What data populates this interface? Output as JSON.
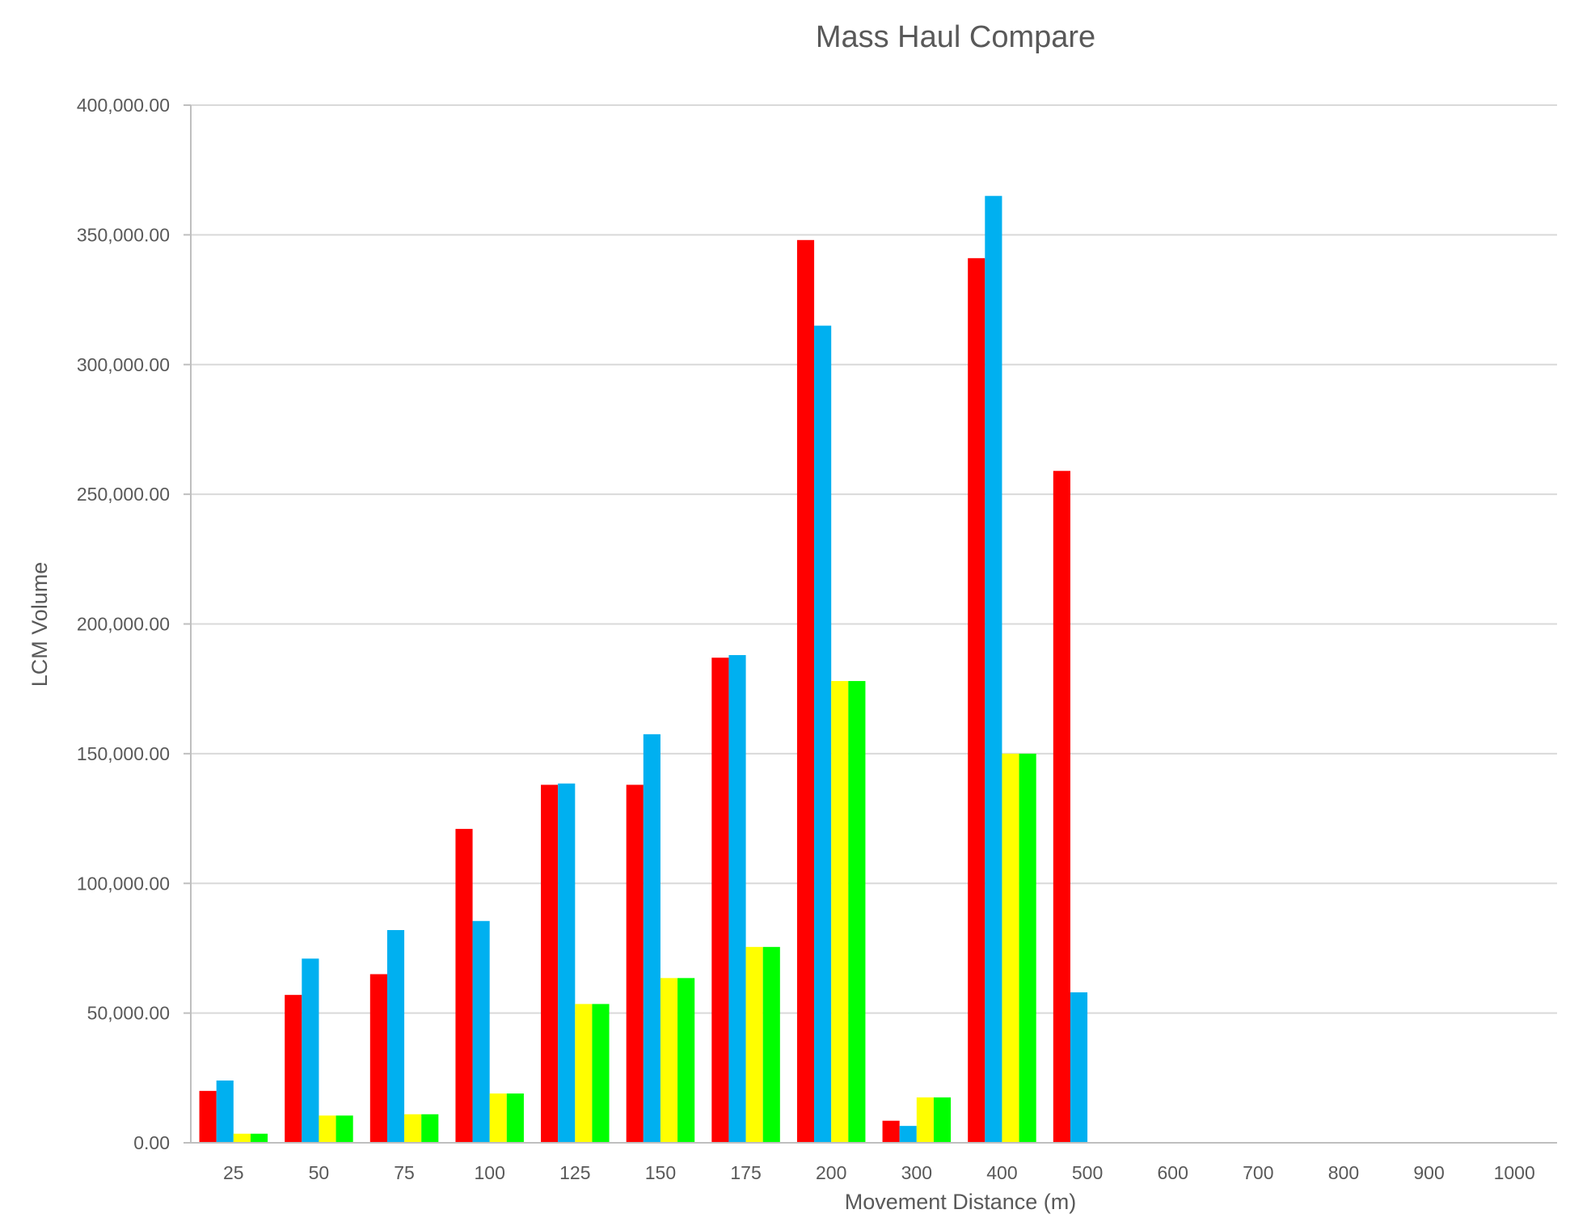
{
  "chart_data": {
    "type": "bar",
    "title": "Mass Haul Compare",
    "xlabel": "Movement Distance (m)",
    "ylabel": "LCM Volume",
    "ylim": [
      0,
      400000
    ],
    "yticks": [
      "0.00",
      "50,000.00",
      "100,000.00",
      "150,000.00",
      "200,000.00",
      "250,000.00",
      "300,000.00",
      "350,000.00",
      "400,000.00"
    ],
    "grid": true,
    "legend": "none",
    "categories": [
      "25",
      "50",
      "75",
      "100",
      "125",
      "150",
      "175",
      "200",
      "300",
      "400",
      "500",
      "600",
      "700",
      "800",
      "900",
      "1000"
    ],
    "series": [
      {
        "color": "#ff0000",
        "values": [
          20000,
          57000,
          65000,
          121000,
          138000,
          138000,
          187000,
          348000,
          8500,
          341000,
          259000,
          0,
          0,
          0,
          0,
          0
        ]
      },
      {
        "color": "#00b0f0",
        "values": [
          24000,
          71000,
          82000,
          85500,
          138500,
          157500,
          188000,
          315000,
          6500,
          365000,
          58000,
          0,
          0,
          0,
          0,
          0
        ]
      },
      {
        "color": "#ffff00",
        "values": [
          3500,
          10500,
          11000,
          19000,
          53500,
          63500,
          75500,
          178000,
          17500,
          150000,
          0,
          0,
          0,
          0,
          0,
          0
        ]
      },
      {
        "color": "#00ff00",
        "values": [
          3500,
          10500,
          11000,
          19000,
          53500,
          63500,
          75500,
          178000,
          17500,
          150000,
          0,
          0,
          0,
          0,
          0,
          0
        ]
      }
    ]
  }
}
